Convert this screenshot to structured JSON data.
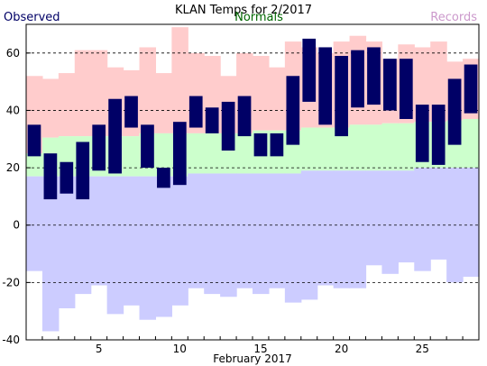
{
  "chart_data": {
    "type": "bar",
    "title": "KLAN Temps for 2/2017",
    "xlabel": "February 2017",
    "ylabel": "",
    "ylim": [
      -40,
      70
    ],
    "xlim": [
      0.5,
      28.5
    ],
    "grid": true,
    "y_ticks": [
      "-40",
      "-20",
      "0",
      "20",
      "40",
      "60"
    ],
    "y_tick_values": [
      -40,
      -20,
      0,
      20,
      40,
      60
    ],
    "x_ticks": [
      "5",
      "10",
      "15",
      "20",
      "25"
    ],
    "x_tick_values": [
      5,
      10,
      15,
      20,
      25
    ],
    "legend": [
      {
        "label": "Observed",
        "color": "#000066"
      },
      {
        "label": "Normals",
        "color": "#006600"
      },
      {
        "label": "Records",
        "color": "#cc99cc"
      }
    ],
    "colors": {
      "record_high_fill": "#ffcccc",
      "normal_fill": "#ccffcc",
      "record_low_fill": "#ccccff",
      "observed_bar": "#000066",
      "grid": "#000000"
    },
    "days": [
      1,
      2,
      3,
      4,
      5,
      6,
      7,
      8,
      9,
      10,
      11,
      12,
      13,
      14,
      15,
      16,
      17,
      18,
      19,
      20,
      21,
      22,
      23,
      24,
      25,
      26,
      27,
      28
    ],
    "series": [
      {
        "name": "Records",
        "values_high": [
          52,
          51,
          53,
          61,
          61,
          55,
          54,
          62,
          53,
          69,
          60,
          59,
          52,
          60,
          59,
          55,
          64,
          62,
          60,
          64,
          66,
          64,
          58,
          63,
          62,
          64,
          57,
          58
        ],
        "values_low": [
          -16,
          -37,
          -29,
          -24,
          -21,
          -31,
          -28,
          -33,
          -32,
          -28,
          -22,
          -24,
          -25,
          -22,
          -24,
          -22,
          -27,
          -26,
          -21,
          -22,
          -22,
          -14,
          -17,
          -13,
          -16,
          -12,
          -20,
          -18
        ]
      },
      {
        "name": "Normals",
        "values_high": [
          25,
          30.5,
          31,
          31,
          31,
          31,
          31,
          32,
          32,
          32,
          32,
          32,
          32,
          32,
          33,
          33,
          33,
          34,
          34,
          34,
          35,
          35,
          35.5,
          35.5,
          36,
          36,
          36.5,
          37
        ],
        "values_low": [
          17,
          17,
          17,
          17,
          17,
          17,
          17,
          17,
          17,
          17,
          18,
          18,
          18,
          18,
          18,
          18,
          18,
          19,
          19,
          19,
          19,
          19,
          19,
          19,
          20,
          20,
          20,
          20
        ]
      },
      {
        "name": "Observed",
        "values_high": [
          35,
          25,
          22,
          29,
          35,
          44,
          45,
          35,
          20,
          36,
          45,
          41,
          43,
          45,
          32,
          32,
          52,
          65,
          62,
          59,
          61,
          62,
          58,
          58,
          42,
          42,
          51,
          56
        ],
        "values_low": [
          24,
          9,
          11,
          9,
          19,
          18,
          34,
          20,
          13,
          14,
          34,
          32,
          26,
          31,
          24,
          24,
          28,
          43,
          35,
          31,
          41,
          42,
          40,
          37,
          22,
          21,
          28,
          39
        ]
      }
    ]
  }
}
